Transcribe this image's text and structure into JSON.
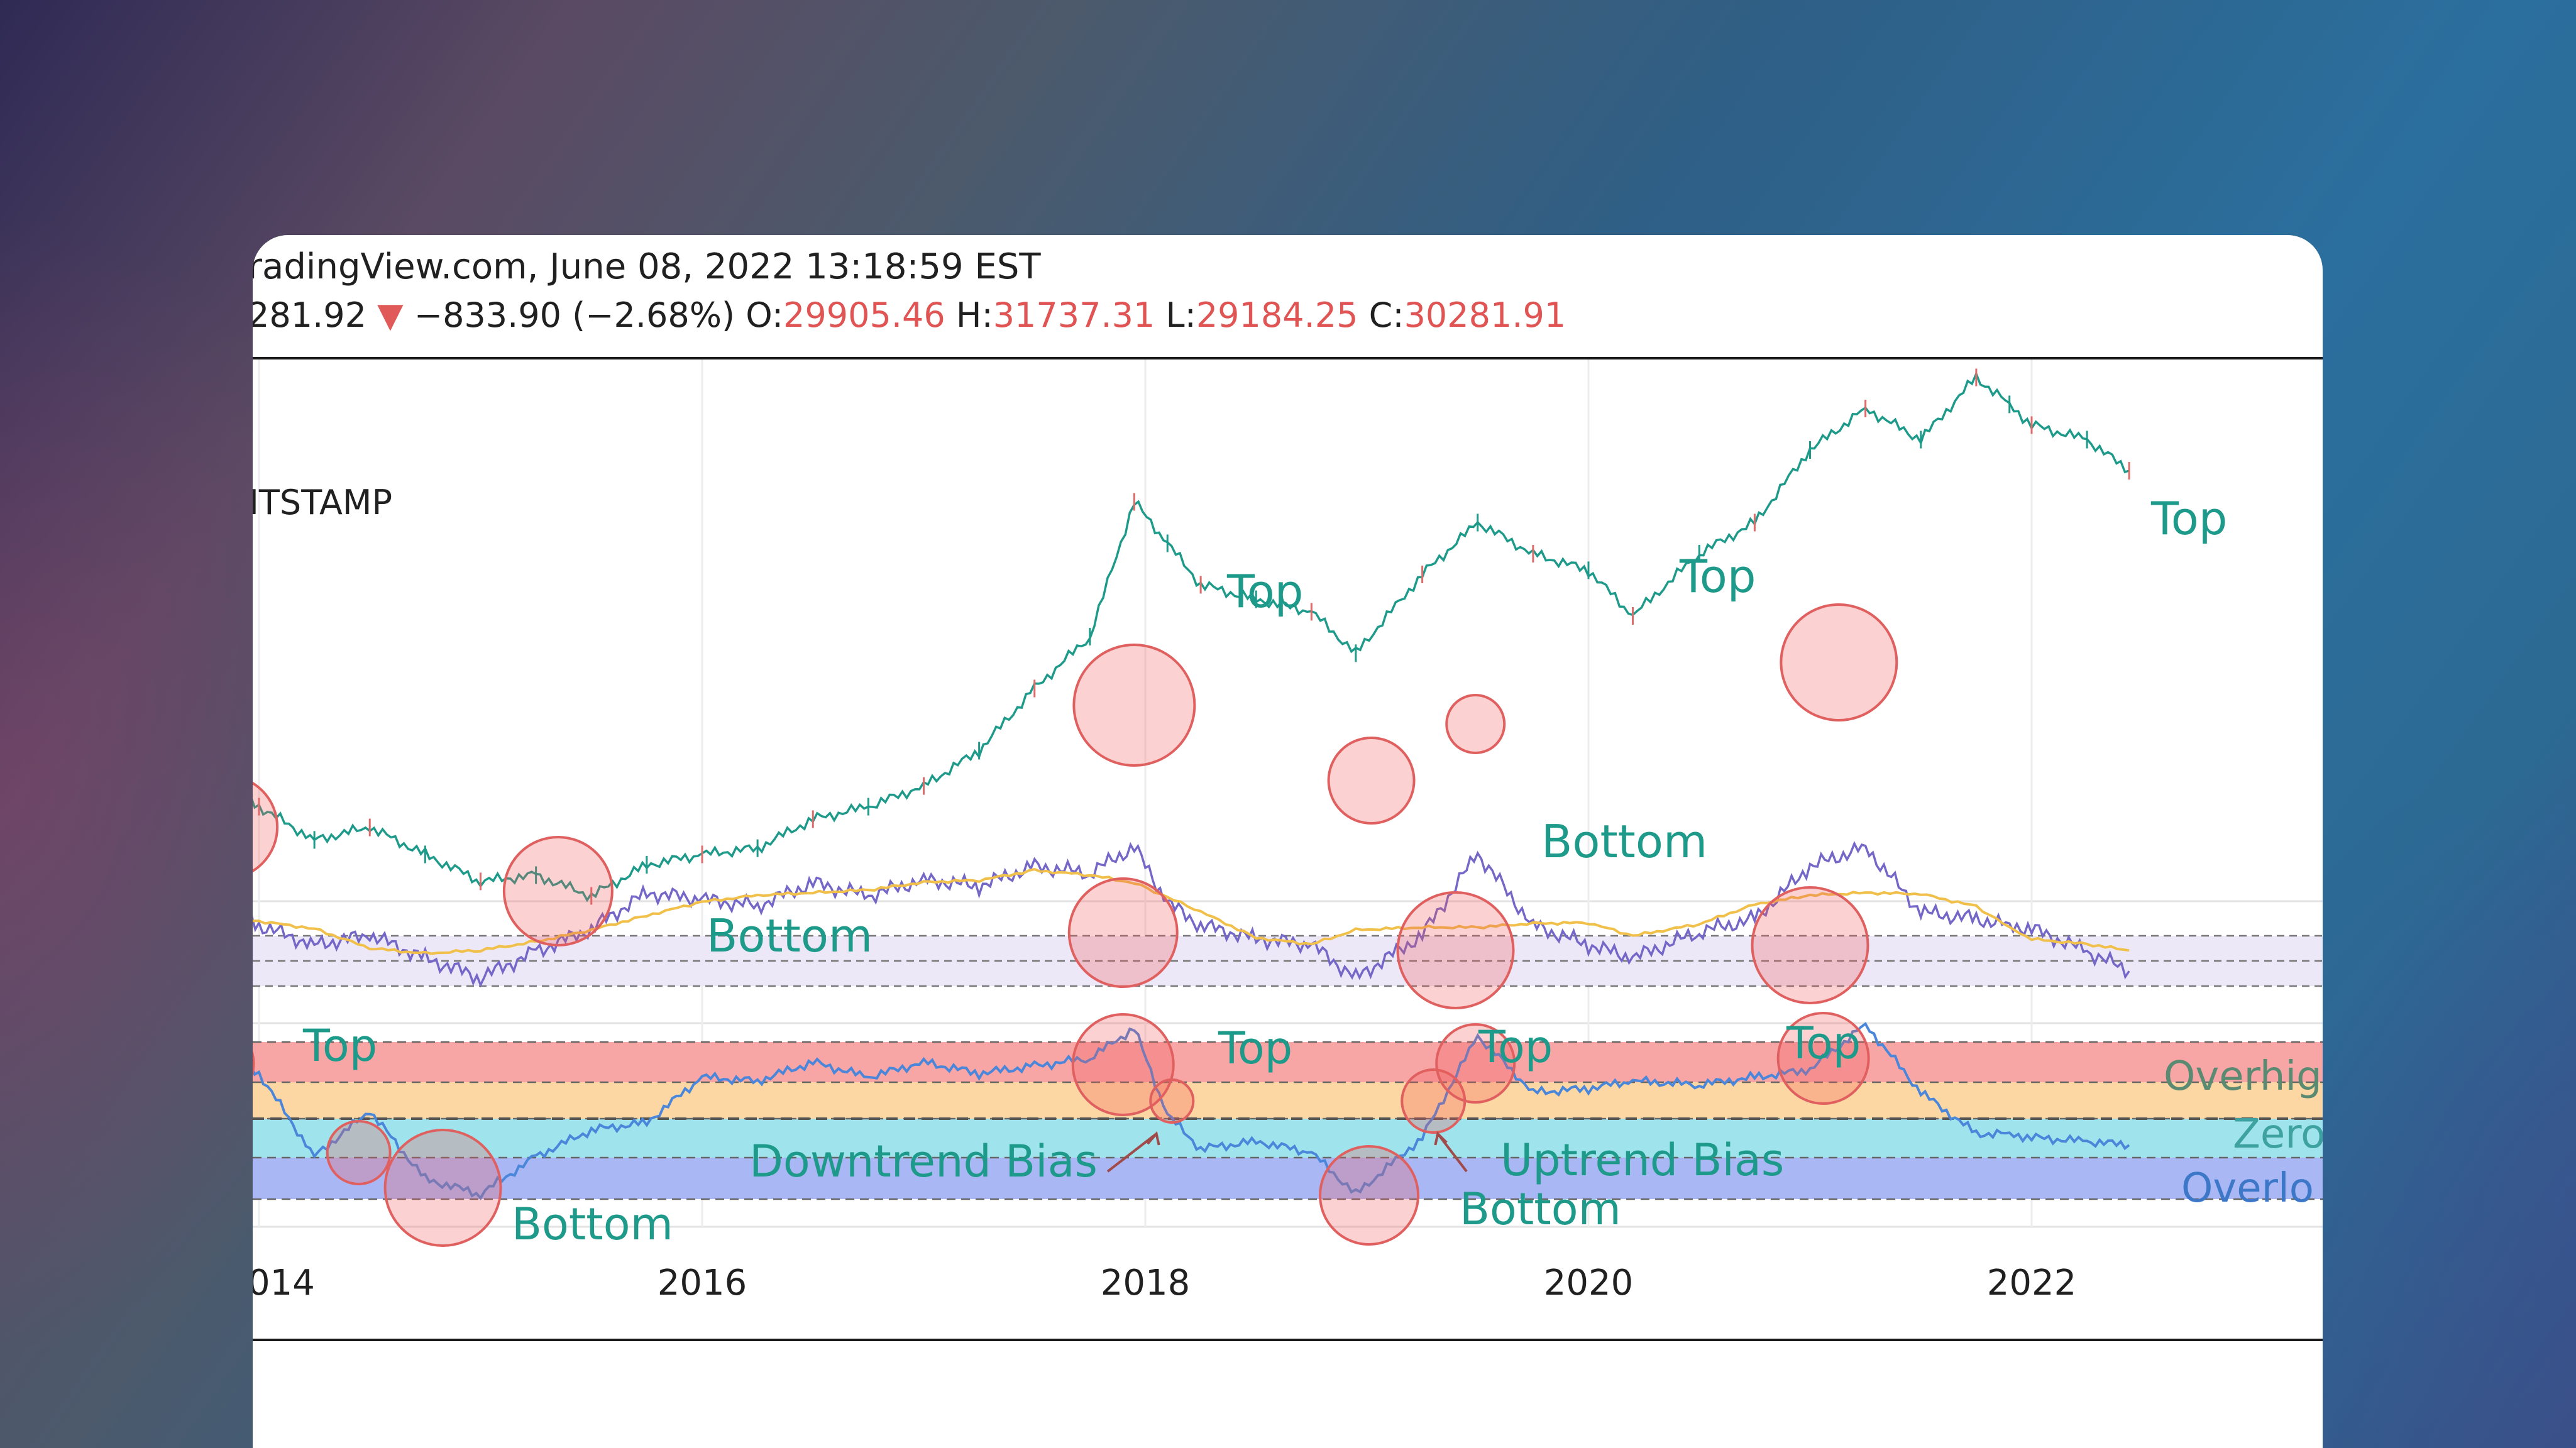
{
  "header": {
    "source_line": "radingView.com, June 08, 2022 13:18:59 EST",
    "price_partial": "281.92",
    "change_arrow": "▼",
    "change": "−833.90 (−2.68%)",
    "open_label": "O:",
    "open_value": "29905.46",
    "high_label": "H:",
    "high_value": "31737.31",
    "low_label": "L:",
    "low_value": "29184.25",
    "close_label": "C:",
    "close_value": "30281.91"
  },
  "colors": {
    "annotation_text": "#1d9a8a",
    "circle_fill": "rgba(240,90,90,0.28)",
    "circle_stroke": "#e06060",
    "band_overheated": "#f8a5a5",
    "band_orange": "#fcd7a3",
    "band_cyan": "#9fe4ec",
    "band_oversold": "#aab7f5",
    "rsi_band": "#ece8f8",
    "price_line": "#1d9a8a",
    "rsi_line": "#7467c8",
    "rsi_ma": "#f0c04a",
    "osc_line": "#4a86d9"
  },
  "chart_data": [
    {
      "type": "line",
      "name": "price",
      "label": "ITSTAMP",
      "x": [
        2013.75,
        2014.0,
        2014.25,
        2014.5,
        2014.75,
        2015.0,
        2015.25,
        2015.5,
        2015.75,
        2016.0,
        2016.25,
        2016.5,
        2016.75,
        2017.0,
        2017.25,
        2017.5,
        2017.75,
        2017.95,
        2018.1,
        2018.25,
        2018.5,
        2018.75,
        2018.95,
        2019.25,
        2019.5,
        2019.75,
        2020.0,
        2020.2,
        2020.5,
        2020.75,
        2021.0,
        2021.25,
        2021.5,
        2021.75,
        2021.9,
        2022.0,
        2022.25,
        2022.44
      ],
      "y": [
        3.0,
        2.78,
        2.62,
        2.68,
        2.55,
        2.42,
        2.45,
        2.35,
        2.5,
        2.55,
        2.58,
        2.72,
        2.78,
        2.88,
        3.05,
        3.35,
        3.6,
        4.25,
        4.05,
        3.85,
        3.78,
        3.72,
        3.52,
        3.9,
        4.15,
        4.0,
        3.92,
        3.7,
        4.0,
        4.15,
        4.5,
        4.7,
        4.55,
        4.85,
        4.72,
        4.62,
        4.55,
        4.4
      ],
      "annotations": [
        "Top",
        "Top",
        "Top",
        "Bottom",
        "Bottom"
      ]
    },
    {
      "type": "line",
      "name": "rsi",
      "x": [
        2013.75,
        2014.0,
        2014.25,
        2014.5,
        2014.75,
        2015.0,
        2015.25,
        2015.5,
        2015.75,
        2016.0,
        2016.25,
        2016.5,
        2016.75,
        2017.0,
        2017.25,
        2017.5,
        2017.75,
        2017.95,
        2018.1,
        2018.25,
        2018.5,
        2018.75,
        2018.95,
        2019.25,
        2019.5,
        2019.75,
        2020.0,
        2020.2,
        2020.5,
        2020.75,
        2021.0,
        2021.25,
        2021.5,
        2021.75,
        2021.9,
        2022.0,
        2022.25,
        2022.44
      ],
      "y": [
        62,
        48,
        42,
        45,
        38,
        32,
        40,
        47,
        58,
        56,
        54,
        61,
        57,
        62,
        60,
        66,
        64,
        72,
        55,
        48,
        44,
        42,
        32,
        45,
        70,
        48,
        42,
        38,
        46,
        50,
        66,
        72,
        52,
        50,
        48,
        47,
        40,
        34
      ]
    },
    {
      "type": "line",
      "name": "oscillator",
      "x": [
        2013.75,
        2014.0,
        2014.25,
        2014.5,
        2014.75,
        2015.0,
        2015.25,
        2015.5,
        2015.75,
        2016.0,
        2016.25,
        2016.5,
        2016.75,
        2017.0,
        2017.25,
        2017.5,
        2017.75,
        2017.95,
        2018.1,
        2018.25,
        2018.5,
        2018.75,
        2018.95,
        2019.25,
        2019.5,
        2019.75,
        2020.0,
        2020.2,
        2020.5,
        2020.75,
        2021.0,
        2021.25,
        2021.5,
        2021.75,
        2021.9,
        2022.0,
        2022.25,
        2022.44
      ],
      "y": [
        2.1,
        1.2,
        -1.0,
        0.2,
        -1.6,
        -2.0,
        -1.0,
        -0.3,
        -0.1,
        1.1,
        1.0,
        1.5,
        1.1,
        1.5,
        1.2,
        1.4,
        1.6,
        2.4,
        0.1,
        -0.8,
        -0.6,
        -0.9,
        -2.0,
        -0.5,
        2.2,
        0.7,
        0.8,
        1.0,
        0.9,
        1.1,
        1.3,
        2.5,
        0.7,
        -0.4,
        -0.4,
        -0.5,
        -0.6,
        -0.7
      ],
      "bands": [
        "Overhig",
        "Zero",
        "Overlo"
      ],
      "annotations": [
        "Top",
        "Top",
        "Top",
        "Top",
        "Bottom",
        "Bottom",
        "Downtrend Bias",
        "Uptrend Bias"
      ]
    }
  ],
  "x_axis": {
    "ticks": [
      "014",
      "2016",
      "2018",
      "2020",
      "2022"
    ]
  }
}
